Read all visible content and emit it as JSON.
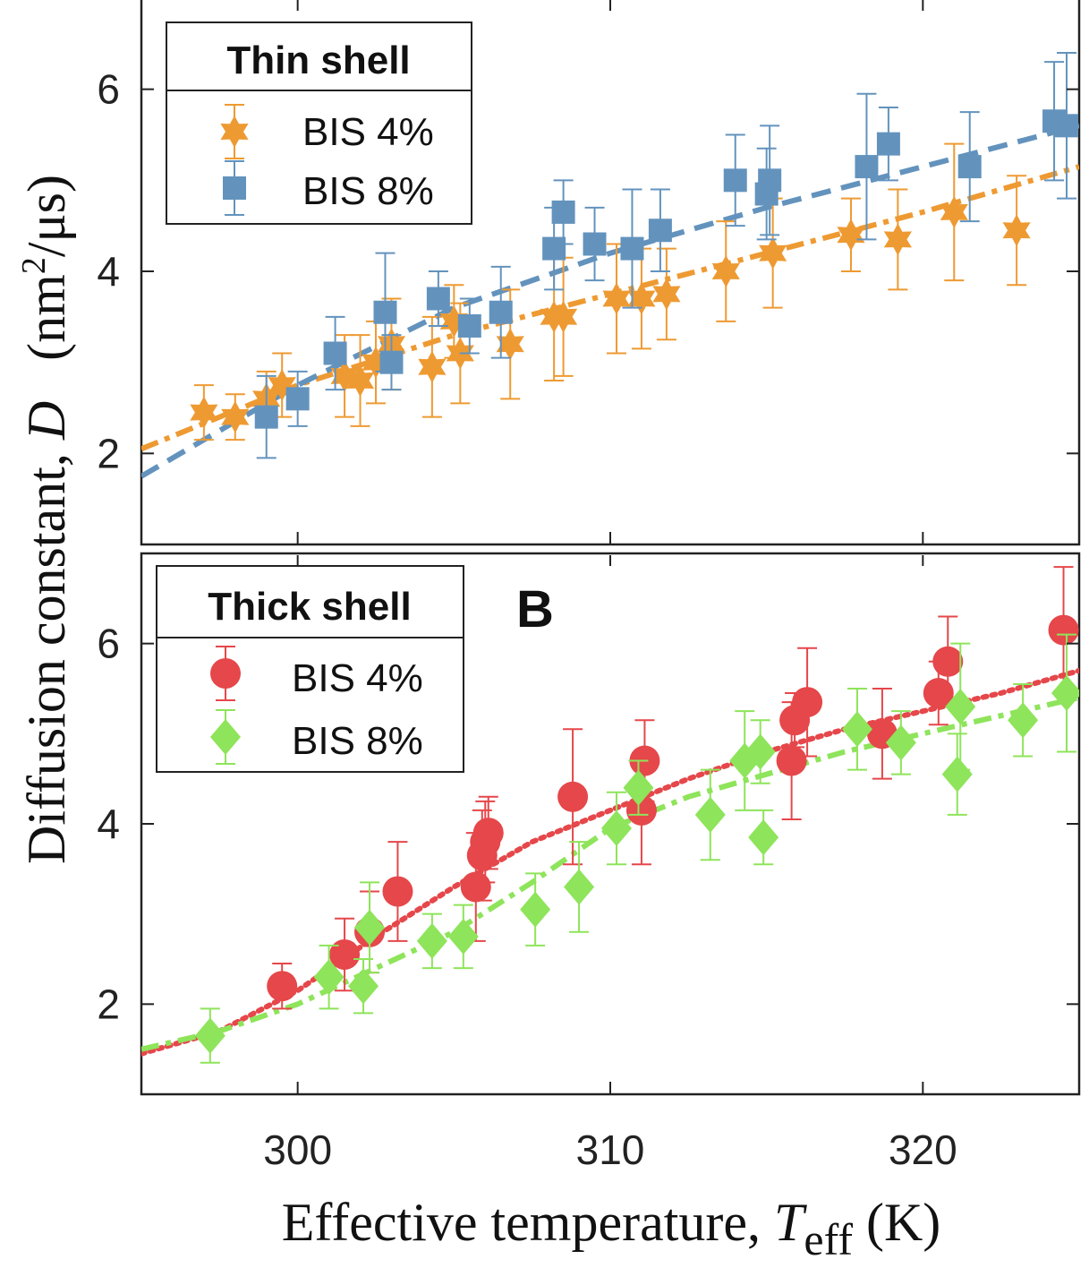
{
  "chart_data": [
    {
      "type": "scatter",
      "panel": "top",
      "panel_label": "",
      "legend_title": "Thin shell",
      "xlabel_main": "Effective temperature, ",
      "xlabel_var": "T",
      "xlabel_sub": "eff",
      "xlabel_unit": " (K)",
      "ylabel_main": "Diffusion constant, ",
      "ylabel_var": "D",
      "ylabel_unit_a": "(nm",
      "ylabel_unit_exp": "2",
      "ylabel_unit_b": "/μs)",
      "xlim": [
        295,
        325
      ],
      "ylim": [
        1,
        7
      ],
      "xticks": [
        300,
        310,
        320
      ],
      "yticks": [
        2,
        4,
        6
      ],
      "ytick_labels": [
        "2",
        "4",
        "6"
      ],
      "series": [
        {
          "name": "BIS 4%",
          "marker": "star",
          "color": "#ee9a32",
          "points": [
            {
              "x": 297.0,
              "y": 2.45,
              "err": 0.3
            },
            {
              "x": 298.0,
              "y": 2.4,
              "err": 0.25
            },
            {
              "x": 299.0,
              "y": 2.6,
              "err": 0.3
            },
            {
              "x": 299.5,
              "y": 2.75,
              "err": 0.35
            },
            {
              "x": 301.5,
              "y": 2.85,
              "err": 0.45
            },
            {
              "x": 302.0,
              "y": 2.8,
              "err": 0.5
            },
            {
              "x": 302.5,
              "y": 3.0,
              "err": 0.45
            },
            {
              "x": 303.0,
              "y": 3.2,
              "err": 0.5
            },
            {
              "x": 304.3,
              "y": 2.95,
              "err": 0.55
            },
            {
              "x": 305.0,
              "y": 3.45,
              "err": 0.4
            },
            {
              "x": 305.2,
              "y": 3.1,
              "err": 0.55
            },
            {
              "x": 306.8,
              "y": 3.2,
              "err": 0.6
            },
            {
              "x": 308.2,
              "y": 3.5,
              "err": 0.7
            },
            {
              "x": 308.5,
              "y": 3.5,
              "err": 0.65
            },
            {
              "x": 310.2,
              "y": 3.7,
              "err": 0.6
            },
            {
              "x": 311.0,
              "y": 3.7,
              "err": 0.55
            },
            {
              "x": 311.8,
              "y": 3.75,
              "err": 0.5
            },
            {
              "x": 313.7,
              "y": 4.0,
              "err": 0.55
            },
            {
              "x": 315.2,
              "y": 4.2,
              "err": 0.6
            },
            {
              "x": 317.7,
              "y": 4.4,
              "err": 0.4
            },
            {
              "x": 319.2,
              "y": 4.35,
              "err": 0.55
            },
            {
              "x": 321.0,
              "y": 4.65,
              "err": 0.75
            },
            {
              "x": 323.0,
              "y": 4.45,
              "err": 0.6
            }
          ],
          "fit": {
            "style": "dash-dot",
            "x": [
              295,
              300,
              305,
              310,
              315,
              320,
              325
            ],
            "y": [
              2.05,
              2.75,
              3.3,
              3.75,
              4.2,
              4.65,
              5.15
            ]
          }
        },
        {
          "name": "BIS 8%",
          "marker": "square",
          "color": "#6393bd",
          "points": [
            {
              "x": 299.0,
              "y": 2.4,
              "err": 0.45
            },
            {
              "x": 300.0,
              "y": 2.6,
              "err": 0.3
            },
            {
              "x": 301.2,
              "y": 3.1,
              "err": 0.4
            },
            {
              "x": 302.8,
              "y": 3.55,
              "err": 0.65
            },
            {
              "x": 303.0,
              "y": 3.0,
              "err": 0.3
            },
            {
              "x": 304.5,
              "y": 3.7,
              "err": 0.3
            },
            {
              "x": 305.5,
              "y": 3.4,
              "err": 0.3
            },
            {
              "x": 306.5,
              "y": 3.55,
              "err": 0.5
            },
            {
              "x": 308.2,
              "y": 4.25,
              "err": 0.45
            },
            {
              "x": 308.5,
              "y": 4.65,
              "err": 0.35
            },
            {
              "x": 309.5,
              "y": 4.3,
              "err": 0.4
            },
            {
              "x": 310.7,
              "y": 4.25,
              "err": 0.65
            },
            {
              "x": 311.6,
              "y": 4.45,
              "err": 0.45
            },
            {
              "x": 314.0,
              "y": 5.0,
              "err": 0.5
            },
            {
              "x": 315.0,
              "y": 4.85,
              "err": 0.5
            },
            {
              "x": 315.1,
              "y": 5.0,
              "err": 0.6
            },
            {
              "x": 318.2,
              "y": 5.15,
              "err": 0.8
            },
            {
              "x": 318.9,
              "y": 5.4,
              "err": 0.4
            },
            {
              "x": 321.5,
              "y": 5.15,
              "err": 0.6
            },
            {
              "x": 324.2,
              "y": 5.65,
              "err": 0.65
            },
            {
              "x": 324.6,
              "y": 5.6,
              "err": 0.8
            }
          ],
          "fit": {
            "style": "dashed",
            "x": [
              295,
              300,
              305,
              310,
              315,
              320,
              325
            ],
            "y": [
              1.75,
              2.75,
              3.6,
              4.2,
              4.7,
              5.15,
              5.6
            ]
          }
        }
      ]
    },
    {
      "type": "scatter",
      "panel": "bottom",
      "panel_label": "B",
      "legend_title": "Thick shell",
      "xlabel": "Effective temperature, Teff (K)",
      "xlim": [
        295,
        325
      ],
      "ylim": [
        1,
        7
      ],
      "xticks": [
        300,
        310,
        320
      ],
      "yticks": [
        2,
        4,
        6
      ],
      "xtick_labels": [
        "300",
        "310",
        "320"
      ],
      "ytick_labels": [
        "2",
        "4",
        "6"
      ],
      "series": [
        {
          "name": "BIS 4%",
          "marker": "circle",
          "color": "#e5474a",
          "points": [
            {
              "x": 299.5,
              "y": 2.2,
              "err": 0.25
            },
            {
              "x": 301.5,
              "y": 2.55,
              "err": 0.4
            },
            {
              "x": 302.3,
              "y": 2.8,
              "err": 0.45
            },
            {
              "x": 303.2,
              "y": 3.25,
              "err": 0.55
            },
            {
              "x": 305.7,
              "y": 3.3,
              "err": 0.6
            },
            {
              "x": 305.9,
              "y": 3.65,
              "err": 0.5
            },
            {
              "x": 306.0,
              "y": 3.8,
              "err": 0.45
            },
            {
              "x": 306.1,
              "y": 3.9,
              "err": 0.4
            },
            {
              "x": 308.8,
              "y": 4.3,
              "err": 0.75
            },
            {
              "x": 311.0,
              "y": 4.15,
              "err": 0.6
            },
            {
              "x": 311.1,
              "y": 4.7,
              "err": 0.45
            },
            {
              "x": 315.8,
              "y": 4.7,
              "err": 0.65
            },
            {
              "x": 315.9,
              "y": 5.15,
              "err": 0.3
            },
            {
              "x": 316.3,
              "y": 5.35,
              "err": 0.6
            },
            {
              "x": 318.7,
              "y": 5.0,
              "err": 0.5
            },
            {
              "x": 320.5,
              "y": 5.45,
              "err": 0.35
            },
            {
              "x": 320.8,
              "y": 5.8,
              "err": 0.5
            },
            {
              "x": 324.5,
              "y": 6.15,
              "err": 0.7
            }
          ],
          "fit": {
            "style": "dotted",
            "x": [
              295,
              297.5,
              300,
              302.5,
              305,
              307.5,
              310,
              312.5,
              315,
              317.5,
              320,
              322.5,
              325
            ],
            "y": [
              1.45,
              1.7,
              2.15,
              2.75,
              3.3,
              3.8,
              4.15,
              4.5,
              4.8,
              5.05,
              5.25,
              5.45,
              5.7
            ]
          }
        },
        {
          "name": "BIS 8%",
          "marker": "diamond",
          "color": "#8ee45a",
          "points": [
            {
              "x": 297.2,
              "y": 1.65,
              "err": 0.3
            },
            {
              "x": 301.0,
              "y": 2.3,
              "err": 0.35
            },
            {
              "x": 302.1,
              "y": 2.2,
              "err": 0.3
            },
            {
              "x": 302.3,
              "y": 2.85,
              "err": 0.5
            },
            {
              "x": 304.3,
              "y": 2.7,
              "err": 0.3
            },
            {
              "x": 305.3,
              "y": 2.75,
              "err": 0.35
            },
            {
              "x": 307.6,
              "y": 3.05,
              "err": 0.4
            },
            {
              "x": 309.0,
              "y": 3.3,
              "err": 0.5
            },
            {
              "x": 310.2,
              "y": 3.95,
              "err": 0.4
            },
            {
              "x": 310.9,
              "y": 4.4,
              "err": 0.3
            },
            {
              "x": 313.2,
              "y": 4.1,
              "err": 0.5
            },
            {
              "x": 314.3,
              "y": 4.7,
              "err": 0.55
            },
            {
              "x": 314.8,
              "y": 4.8,
              "err": 0.35
            },
            {
              "x": 314.9,
              "y": 3.85,
              "err": 0.3
            },
            {
              "x": 317.9,
              "y": 5.05,
              "err": 0.45
            },
            {
              "x": 319.3,
              "y": 4.9,
              "err": 0.35
            },
            {
              "x": 321.1,
              "y": 4.55,
              "err": 0.45
            },
            {
              "x": 321.2,
              "y": 5.3,
              "err": 0.7
            },
            {
              "x": 323.2,
              "y": 5.15,
              "err": 0.4
            },
            {
              "x": 324.6,
              "y": 5.45,
              "err": 0.65
            }
          ],
          "fit": {
            "style": "dash-dot",
            "x": [
              295,
              297.5,
              300,
              302.5,
              305,
              307.5,
              310,
              312.5,
              315,
              317.5,
              320,
              322.5,
              325
            ],
            "y": [
              1.5,
              1.7,
              2.0,
              2.4,
              2.8,
              3.35,
              3.95,
              4.3,
              4.55,
              4.8,
              5.0,
              5.2,
              5.4
            ]
          }
        }
      ]
    }
  ]
}
